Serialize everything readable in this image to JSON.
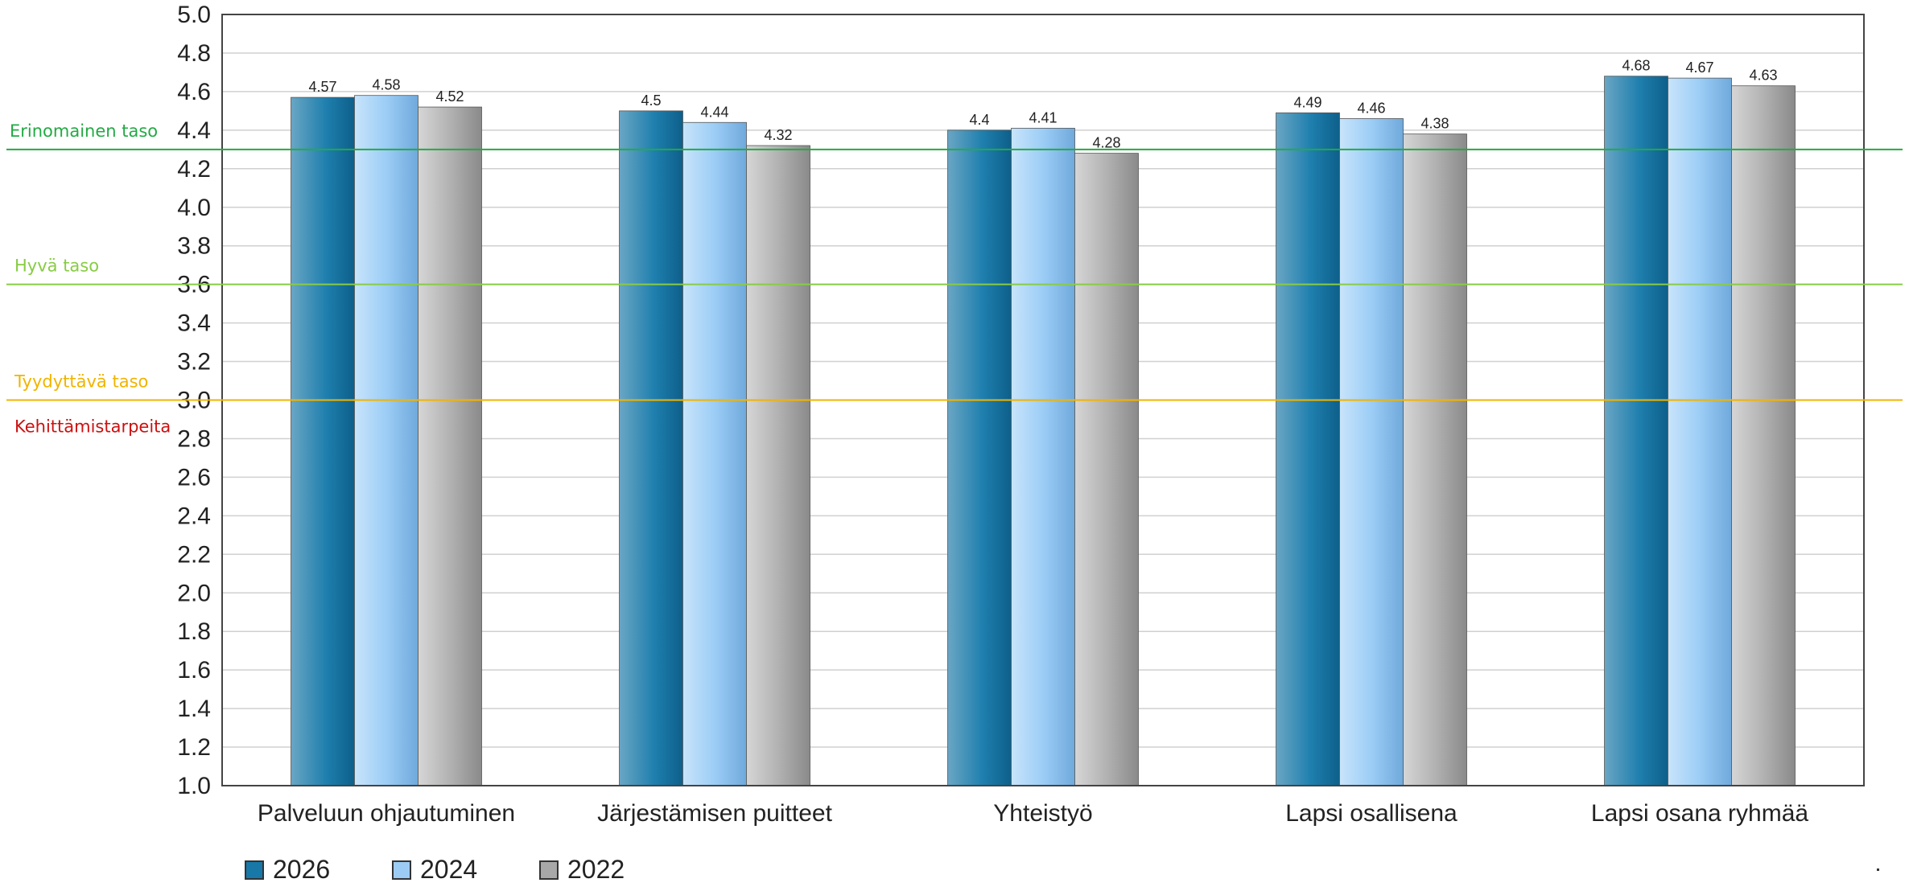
{
  "chart_data": {
    "type": "bar",
    "categories": [
      "Palveluun ohjautuminen",
      "Järjestämisen puitteet",
      "Yhteistyö",
      "Lapsi osallisena",
      "Lapsi osana ryhmää"
    ],
    "series": [
      {
        "name": "2026",
        "values": [
          4.57,
          4.5,
          4.4,
          4.49,
          4.68
        ],
        "labels": [
          "4.57",
          "4.5",
          "4.4",
          "4.49",
          "4.68"
        ],
        "color": "#1878a8"
      },
      {
        "name": "2024",
        "values": [
          4.58,
          4.44,
          4.41,
          4.46,
          4.67
        ],
        "labels": [
          "4.58",
          "4.44",
          "4.41",
          "4.46",
          "4.67"
        ],
        "color": "#9cccf4"
      },
      {
        "name": "2022",
        "values": [
          4.52,
          4.32,
          4.28,
          4.38,
          4.63
        ],
        "labels": [
          "4.52",
          "4.32",
          "4.28",
          "4.38",
          "4.63"
        ],
        "color": "#a8a8a8"
      }
    ],
    "ylim": [
      1.0,
      5.0
    ],
    "yticks": [
      "1.0",
      "1.2",
      "1.4",
      "1.6",
      "1.8",
      "2.0",
      "2.2",
      "2.4",
      "2.6",
      "2.8",
      "3.0",
      "3.2",
      "3.4",
      "3.6",
      "3.8",
      "4.0",
      "4.2",
      "4.4",
      "4.6",
      "4.8",
      "5.0"
    ],
    "grid": true,
    "legend_position": "bottom-left",
    "reference_lines": [
      {
        "label": "Erinomainen taso",
        "value": 4.3,
        "color": "#22aa44"
      },
      {
        "label": "Hyvä taso",
        "value": 3.6,
        "color": "#88cc44"
      },
      {
        "label": "Tyydyttävä taso",
        "value": 3.0,
        "color": "#f0b400"
      }
    ],
    "zone_labels": [
      {
        "label": "Kehittämistarpeita",
        "color": "#cc1111"
      }
    ]
  }
}
